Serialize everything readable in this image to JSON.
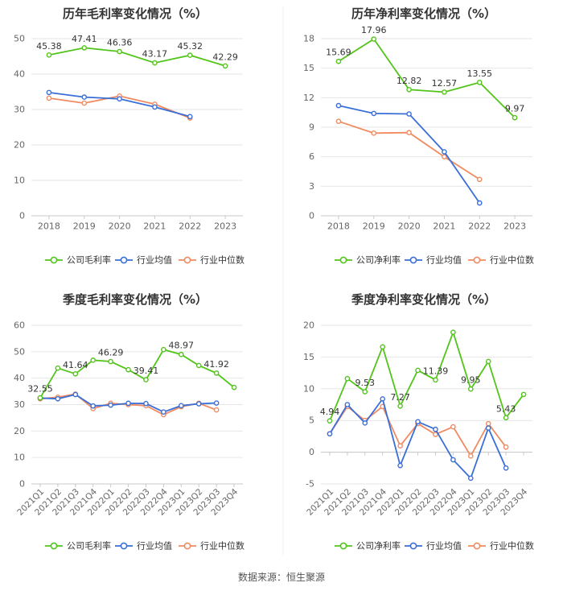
{
  "source": "数据来源：恒生聚源",
  "colors": {
    "company": "#52c41a",
    "avg": "#3a6fd8",
    "median": "#f08a60",
    "grid": "#e6e6e6",
    "axis": "#666666",
    "label": "#333333"
  },
  "chart_data": [
    {
      "type": "line",
      "title": "历年毛利率变化情况（%）",
      "categories": [
        "2018",
        "2019",
        "2020",
        "2021",
        "2022",
        "2023"
      ],
      "ylim": [
        0,
        50
      ],
      "yticks": [
        0,
        10,
        20,
        30,
        40,
        50
      ],
      "series": [
        {
          "name": "公司毛利率",
          "role": "company",
          "values": [
            45.38,
            47.41,
            46.36,
            43.17,
            45.32,
            42.29
          ],
          "labels": [
            "45.38",
            "47.41",
            "46.36",
            "43.17",
            "45.32",
            "42.29"
          ]
        },
        {
          "name": "行业均值",
          "role": "avg",
          "values": [
            34.8,
            33.5,
            33.0,
            30.7,
            28.0,
            null
          ]
        },
        {
          "name": "行业中位数",
          "role": "median",
          "values": [
            33.2,
            31.8,
            33.8,
            31.5,
            27.6,
            null
          ]
        }
      ]
    },
    {
      "type": "line",
      "title": "历年净利率变化情况（%）",
      "categories": [
        "2018",
        "2019",
        "2020",
        "2021",
        "2022",
        "2023"
      ],
      "ylim": [
        0,
        18
      ],
      "yticks": [
        0,
        3,
        6,
        9,
        12,
        15,
        18
      ],
      "series": [
        {
          "name": "公司净利率",
          "role": "company",
          "values": [
            15.69,
            17.96,
            12.82,
            12.57,
            13.55,
            9.97
          ],
          "labels": [
            "15.69",
            "17.96",
            "12.82",
            "12.57",
            "13.55",
            "9.97"
          ]
        },
        {
          "name": "行业均值",
          "role": "avg",
          "values": [
            11.2,
            10.4,
            10.35,
            6.5,
            1.3,
            null
          ]
        },
        {
          "name": "行业中位数",
          "role": "median",
          "values": [
            9.6,
            8.4,
            8.45,
            6.0,
            3.7,
            null
          ]
        }
      ]
    },
    {
      "type": "line",
      "title": "季度毛利率变化情况（%）",
      "categories": [
        "2021Q1",
        "2021Q2",
        "2021Q3",
        "2021Q4",
        "2022Q1",
        "2022Q2",
        "2022Q3",
        "2022Q4",
        "2023Q1",
        "2023Q2",
        "2023Q3",
        "2023Q4"
      ],
      "ylim": [
        0,
        60
      ],
      "yticks": [
        0,
        10,
        20,
        30,
        40,
        50,
        60
      ],
      "series": [
        {
          "name": "公司毛利率",
          "role": "company",
          "values": [
            32.55,
            43.8,
            41.64,
            46.8,
            46.29,
            43.2,
            39.41,
            50.8,
            48.97,
            44.8,
            41.92,
            36.5
          ],
          "labels": [
            "32.55",
            null,
            "41.64",
            null,
            "46.29",
            null,
            "39.41",
            null,
            "48.97",
            null,
            "41.92",
            null
          ]
        },
        {
          "name": "行业均值",
          "role": "avg",
          "values": [
            32.5,
            32.2,
            33.8,
            29.5,
            29.8,
            30.5,
            30.4,
            27.2,
            29.6,
            30.3,
            30.6,
            null
          ]
        },
        {
          "name": "行业中位数",
          "role": "median",
          "values": [
            32.2,
            32.8,
            34.0,
            28.5,
            30.5,
            30.0,
            29.6,
            26.2,
            29.2,
            30.5,
            28.0,
            null
          ]
        }
      ]
    },
    {
      "type": "line",
      "title": "季度净利率变化情况（%）",
      "categories": [
        "2021Q1",
        "2021Q2",
        "2021Q3",
        "2021Q4",
        "2022Q1",
        "2022Q2",
        "2022Q3",
        "2022Q4",
        "2023Q1",
        "2023Q2",
        "2023Q3",
        "2023Q4"
      ],
      "ylim": [
        -5,
        20
      ],
      "yticks": [
        -5,
        0,
        5,
        10,
        15,
        20
      ],
      "series": [
        {
          "name": "公司净利率",
          "role": "company",
          "values": [
            4.94,
            11.6,
            9.53,
            16.6,
            7.27,
            12.9,
            11.39,
            18.9,
            9.95,
            14.3,
            5.43,
            9.1
          ],
          "labels": [
            "4.94",
            null,
            "9.53",
            null,
            "7.27",
            null,
            "11.39",
            null,
            "9.95",
            null,
            "5.43",
            null
          ]
        },
        {
          "name": "行业均值",
          "role": "avg",
          "values": [
            2.9,
            7.5,
            4.6,
            8.4,
            -2.1,
            4.8,
            3.6,
            -1.2,
            -4.1,
            3.8,
            -2.5,
            null
          ]
        },
        {
          "name": "行业中位数",
          "role": "median",
          "values": [
            2.9,
            7.2,
            5.0,
            7.2,
            1.0,
            4.5,
            2.8,
            4.0,
            -0.6,
            4.5,
            0.8,
            null
          ]
        }
      ]
    }
  ]
}
